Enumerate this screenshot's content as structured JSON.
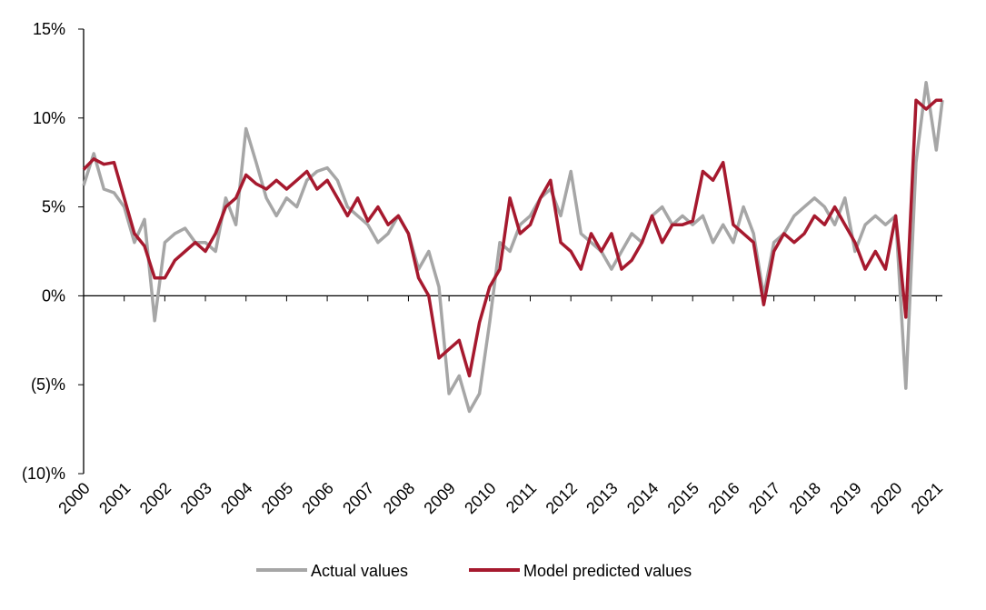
{
  "chart_data": {
    "type": "line",
    "x": [
      2000,
      2000.25,
      2000.5,
      2000.75,
      2001,
      2001.25,
      2001.5,
      2001.75,
      2002,
      2002.25,
      2002.5,
      2002.75,
      2003,
      2003.25,
      2003.5,
      2003.75,
      2004,
      2004.25,
      2004.5,
      2004.75,
      2005,
      2005.25,
      2005.5,
      2005.75,
      2006,
      2006.25,
      2006.5,
      2006.75,
      2007,
      2007.25,
      2007.5,
      2007.75,
      2008,
      2008.25,
      2008.5,
      2008.75,
      2009,
      2009.25,
      2009.5,
      2009.75,
      2010,
      2010.25,
      2010.5,
      2010.75,
      2011,
      2011.25,
      2011.5,
      2011.75,
      2012,
      2012.25,
      2012.5,
      2012.75,
      2013,
      2013.25,
      2013.5,
      2013.75,
      2014,
      2014.25,
      2014.5,
      2014.75,
      2015,
      2015.25,
      2015.5,
      2015.75,
      2016,
      2016.25,
      2016.5,
      2016.75,
      2017,
      2017.25,
      2017.5,
      2017.75,
      2018,
      2018.25,
      2018.5,
      2018.75,
      2019,
      2019.25,
      2019.5,
      2019.75,
      2020,
      2020.25,
      2020.5,
      2020.75,
      2021,
      2021.15
    ],
    "series": [
      {
        "name": "Actual values",
        "color": "#a6a6a6",
        "values": [
          6.2,
          8.0,
          6.0,
          5.8,
          5.0,
          3.0,
          4.3,
          -1.4,
          3.0,
          3.5,
          3.8,
          3.0,
          3.0,
          2.5,
          5.5,
          4.0,
          9.4,
          7.5,
          5.5,
          4.5,
          5.5,
          5.0,
          6.5,
          7.0,
          7.2,
          6.5,
          5.0,
          4.5,
          4.0,
          3.0,
          3.5,
          4.5,
          3.5,
          1.5,
          2.5,
          0.5,
          -5.5,
          -4.5,
          -6.5,
          -5.5,
          -1.5,
          3.0,
          2.5,
          4.0,
          4.5,
          5.5,
          6.0,
          4.5,
          7.0,
          3.5,
          3.0,
          2.5,
          1.5,
          2.5,
          3.5,
          3.0,
          4.5,
          5.0,
          4.0,
          4.5,
          4.0,
          4.5,
          3.0,
          4.0,
          3.0,
          5.0,
          3.5,
          0.0,
          3.0,
          3.5,
          4.5,
          5.0,
          5.5,
          5.0,
          4.0,
          5.5,
          2.5,
          4.0,
          4.5,
          4.0,
          4.5,
          -5.2,
          7.5,
          12.0,
          8.2,
          11.0
        ]
      },
      {
        "name": "Model predicted values",
        "color": "#a6192e",
        "values": [
          7.1,
          7.7,
          7.4,
          7.5,
          5.5,
          3.5,
          2.8,
          1.0,
          1.0,
          2.0,
          2.5,
          3.0,
          2.5,
          3.5,
          5.0,
          5.5,
          6.8,
          6.3,
          6.0,
          6.5,
          6.0,
          6.5,
          7.0,
          6.0,
          6.5,
          5.5,
          4.5,
          5.5,
          4.2,
          5.0,
          4.0,
          4.5,
          3.5,
          1.0,
          0.0,
          -3.5,
          -3.0,
          -2.5,
          -4.5,
          -1.5,
          0.5,
          1.5,
          5.5,
          3.5,
          4.0,
          5.5,
          6.5,
          3.0,
          2.5,
          1.5,
          3.5,
          2.5,
          3.5,
          1.5,
          2.0,
          3.0,
          4.5,
          3.0,
          4.0,
          4.0,
          4.2,
          7.0,
          6.5,
          7.5,
          4.0,
          3.5,
          3.0,
          -0.5,
          2.5,
          3.5,
          3.0,
          3.5,
          4.5,
          4.0,
          5.0,
          4.0,
          3.0,
          1.5,
          2.5,
          1.5,
          4.5,
          -1.2,
          11.0,
          10.5,
          11.0,
          11.0
        ]
      }
    ],
    "xlim": [
      2000,
      2021.15
    ],
    "xticks": [
      2000,
      2001,
      2002,
      2003,
      2004,
      2005,
      2006,
      2007,
      2008,
      2009,
      2010,
      2011,
      2012,
      2013,
      2014,
      2015,
      2016,
      2017,
      2018,
      2019,
      2020,
      2021
    ],
    "ylim": [
      -10,
      15
    ],
    "yticks": [
      {
        "value": 15,
        "label": "15%"
      },
      {
        "value": 10,
        "label": "10%"
      },
      {
        "value": 5,
        "label": "5%"
      },
      {
        "value": 0,
        "label": "0%"
      },
      {
        "value": -5,
        "label": "(5)%"
      },
      {
        "value": -10,
        "label": "(10)%"
      }
    ],
    "legend": "bottom"
  }
}
